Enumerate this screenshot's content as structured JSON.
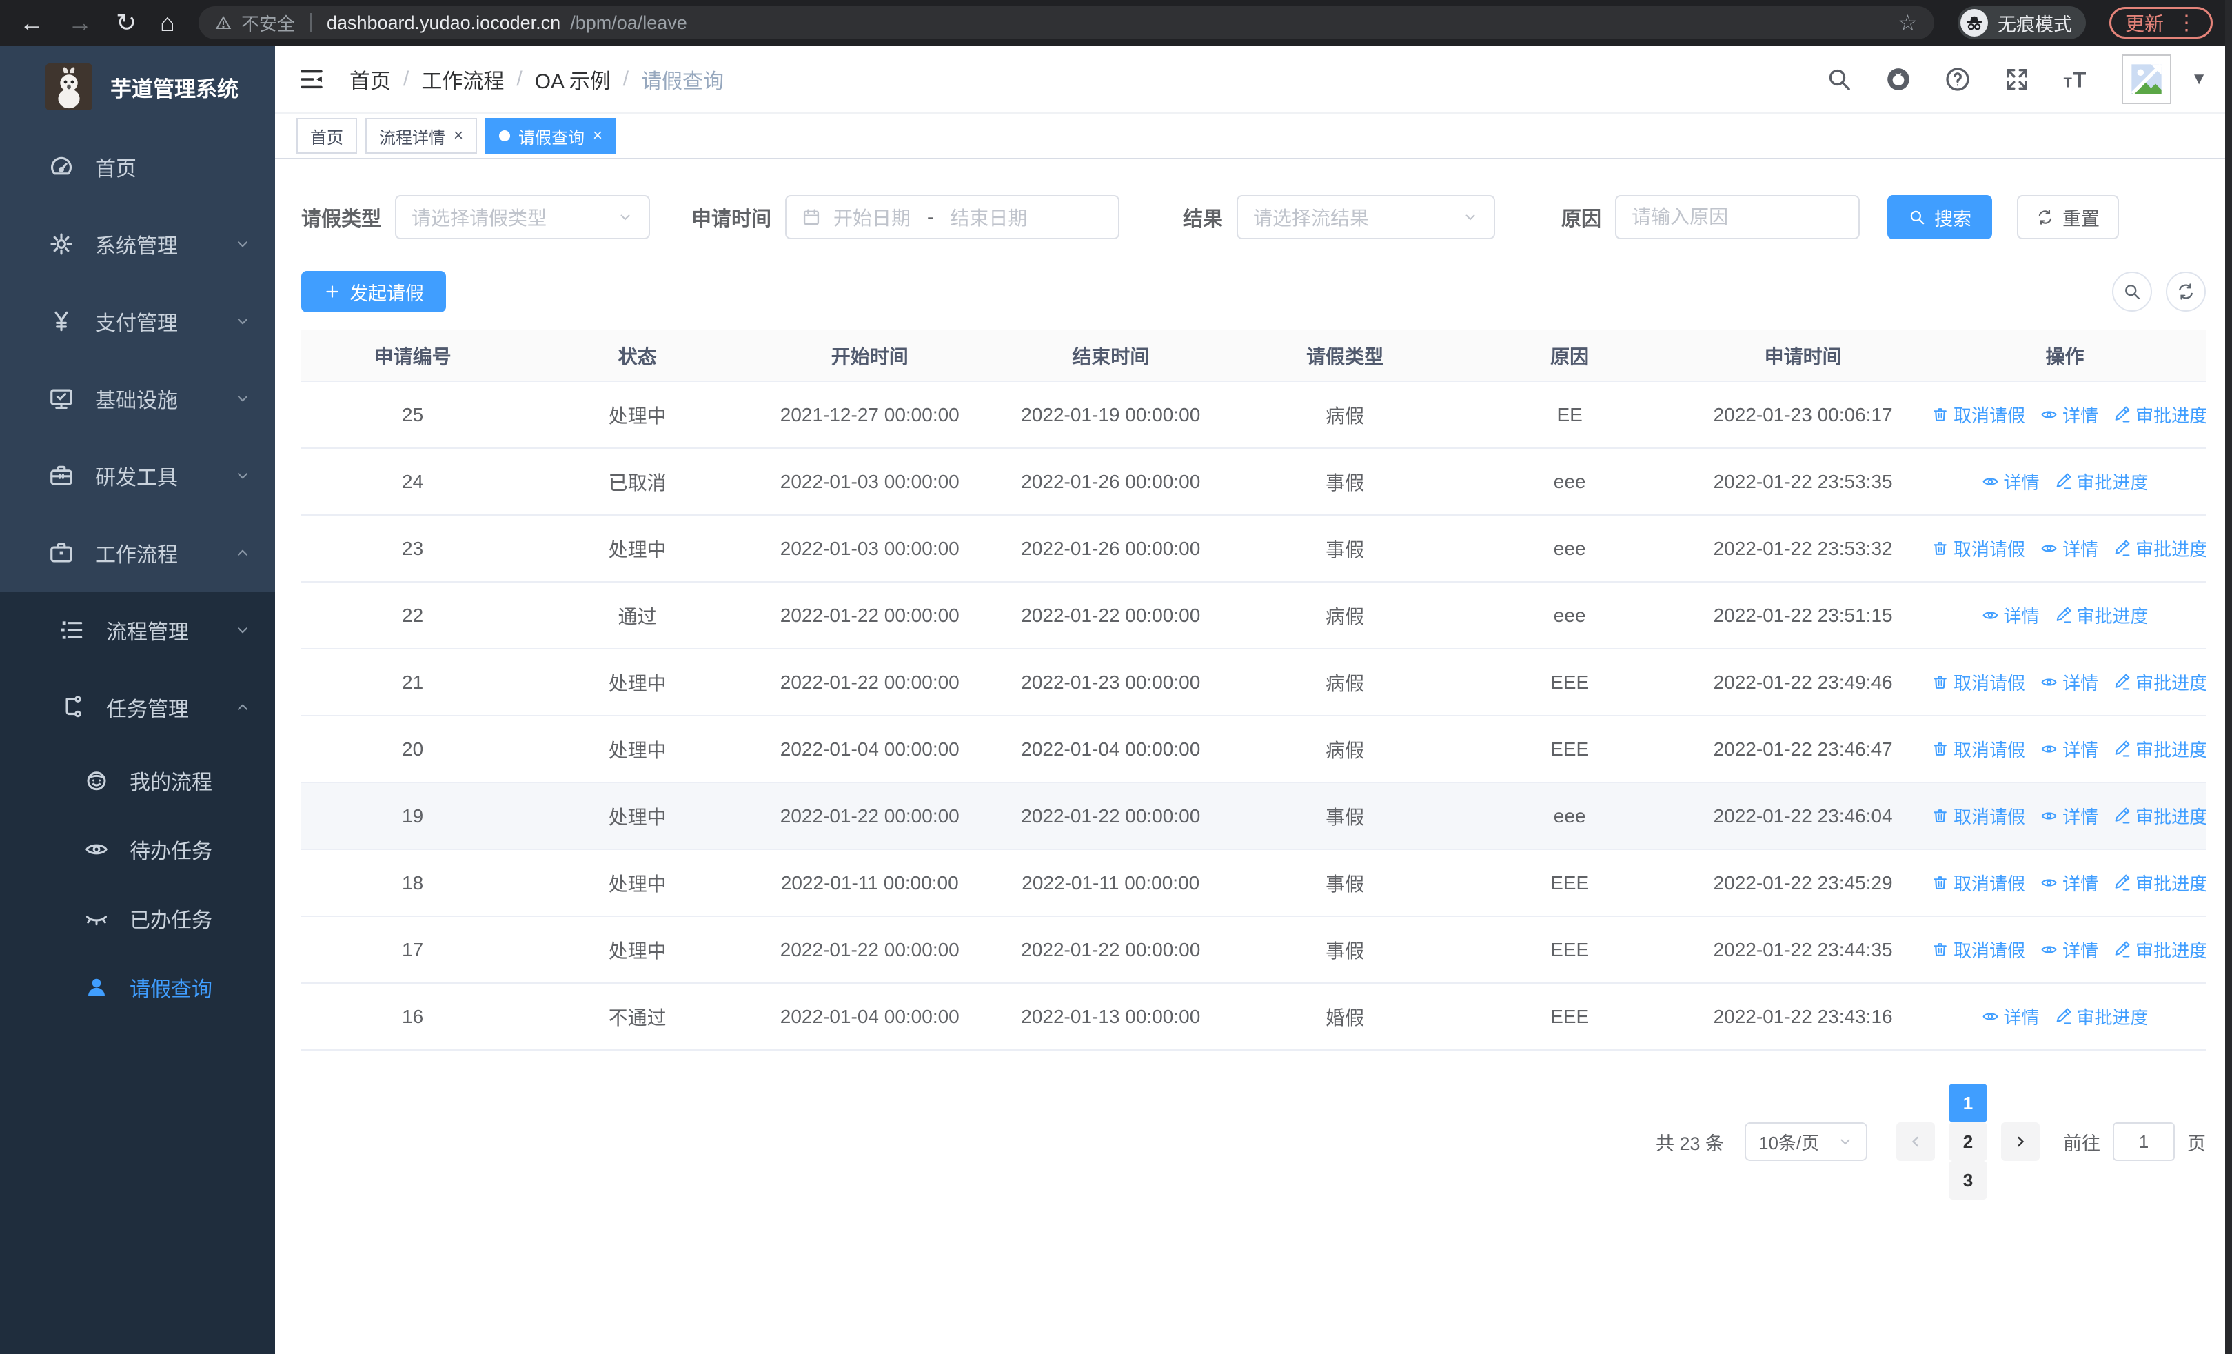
{
  "colors": {
    "accent": "#409eff",
    "sidebar_bg": "#304156",
    "submenu_bg": "#1f2d3d"
  },
  "browser": {
    "security_label": "不安全",
    "url_host": "dashboard.yudao.iocoder.cn",
    "url_path": "/bpm/oa/leave",
    "incognito_label": "无痕模式",
    "update_label": "更新"
  },
  "sidebar": {
    "app_title": "芋道管理系统",
    "items": [
      {
        "name": "home",
        "label": "首页",
        "icon": "dashboard-icon",
        "level": 1,
        "arrow": null,
        "active": false
      },
      {
        "name": "system",
        "label": "系统管理",
        "icon": "gear-icon",
        "level": 1,
        "arrow": "down",
        "active": false
      },
      {
        "name": "payment",
        "label": "支付管理",
        "icon": "yen-icon",
        "level": 1,
        "arrow": "down",
        "active": false
      },
      {
        "name": "infra",
        "label": "基础设施",
        "icon": "monitor-icon",
        "level": 1,
        "arrow": "down",
        "active": false
      },
      {
        "name": "devtools",
        "label": "研发工具",
        "icon": "toolbox-icon",
        "level": 1,
        "arrow": "down",
        "active": false
      },
      {
        "name": "workflow",
        "label": "工作流程",
        "icon": "briefcase-icon",
        "level": 1,
        "arrow": "up",
        "active": false
      },
      {
        "name": "process-mgmt",
        "label": "流程管理",
        "icon": "list-tree-icon",
        "level": 2,
        "arrow": "down",
        "active": false
      },
      {
        "name": "task-mgmt",
        "label": "任务管理",
        "icon": "flow-tree-icon",
        "level": 2,
        "arrow": "up",
        "active": false
      },
      {
        "name": "my-process",
        "label": "我的流程",
        "icon": "robot-icon",
        "level": 3,
        "arrow": null,
        "active": false
      },
      {
        "name": "todo-task",
        "label": "待办任务",
        "icon": "eye-icon",
        "level": 3,
        "arrow": null,
        "active": false
      },
      {
        "name": "done-task",
        "label": "已办任务",
        "icon": "eye-closed-icon",
        "level": 3,
        "arrow": null,
        "active": false
      },
      {
        "name": "leave-query",
        "label": "请假查询",
        "icon": "user-icon",
        "level": 3,
        "arrow": null,
        "active": true
      }
    ]
  },
  "header": {
    "breadcrumb": [
      "首页",
      "工作流程",
      "OA 示例",
      "请假查询"
    ],
    "icons": [
      "search-icon",
      "github-icon",
      "question-icon",
      "fullscreen-icon",
      "fontsize-icon"
    ]
  },
  "tabs": [
    {
      "name": "home",
      "label": "首页",
      "active": false,
      "closable": false
    },
    {
      "name": "process-detail",
      "label": "流程详情",
      "active": false,
      "closable": true
    },
    {
      "name": "leave-query",
      "label": "请假查询",
      "active": true,
      "closable": true
    }
  ],
  "filters": {
    "leave_type_label": "请假类型",
    "leave_type_placeholder": "请选择请假类型",
    "apply_time_label": "申请时间",
    "date_start_placeholder": "开始日期",
    "date_separator": "-",
    "date_end_placeholder": "结束日期",
    "result_label": "结果",
    "result_placeholder": "请选择流结果",
    "reason_label": "原因",
    "reason_placeholder": "请输入原因",
    "search_label": "搜索",
    "reset_label": "重置"
  },
  "toolbar": {
    "create_label": "发起请假"
  },
  "table": {
    "columns": [
      "申请编号",
      "状态",
      "开始时间",
      "结束时间",
      "请假类型",
      "原因",
      "申请时间",
      "操作"
    ],
    "action_defs": {
      "cancel": {
        "label": "取消请假",
        "icon": "trash-icon"
      },
      "detail": {
        "label": "详情",
        "icon": "eye-icon"
      },
      "progress": {
        "label": "审批进度",
        "icon": "pen-icon"
      }
    },
    "rows": [
      {
        "id": "25",
        "status": "处理中",
        "start": "2021-12-27 00:00:00",
        "end": "2022-01-19 00:00:00",
        "type": "病假",
        "reason": "EE",
        "apply": "2022-01-23 00:06:17",
        "actions": [
          "cancel",
          "detail",
          "progress"
        ],
        "highlighted": false
      },
      {
        "id": "24",
        "status": "已取消",
        "start": "2022-01-03 00:00:00",
        "end": "2022-01-26 00:00:00",
        "type": "事假",
        "reason": "eee",
        "apply": "2022-01-22 23:53:35",
        "actions": [
          "detail",
          "progress"
        ],
        "highlighted": false
      },
      {
        "id": "23",
        "status": "处理中",
        "start": "2022-01-03 00:00:00",
        "end": "2022-01-26 00:00:00",
        "type": "事假",
        "reason": "eee",
        "apply": "2022-01-22 23:53:32",
        "actions": [
          "cancel",
          "detail",
          "progress"
        ],
        "highlighted": false
      },
      {
        "id": "22",
        "status": "通过",
        "start": "2022-01-22 00:00:00",
        "end": "2022-01-22 00:00:00",
        "type": "病假",
        "reason": "eee",
        "apply": "2022-01-22 23:51:15",
        "actions": [
          "detail",
          "progress"
        ],
        "highlighted": false
      },
      {
        "id": "21",
        "status": "处理中",
        "start": "2022-01-22 00:00:00",
        "end": "2022-01-23 00:00:00",
        "type": "病假",
        "reason": "EEE",
        "apply": "2022-01-22 23:49:46",
        "actions": [
          "cancel",
          "detail",
          "progress"
        ],
        "highlighted": false
      },
      {
        "id": "20",
        "status": "处理中",
        "start": "2022-01-04 00:00:00",
        "end": "2022-01-04 00:00:00",
        "type": "病假",
        "reason": "EEE",
        "apply": "2022-01-22 23:46:47",
        "actions": [
          "cancel",
          "detail",
          "progress"
        ],
        "highlighted": false
      },
      {
        "id": "19",
        "status": "处理中",
        "start": "2022-01-22 00:00:00",
        "end": "2022-01-22 00:00:00",
        "type": "事假",
        "reason": "eee",
        "apply": "2022-01-22 23:46:04",
        "actions": [
          "cancel",
          "detail",
          "progress"
        ],
        "highlighted": true
      },
      {
        "id": "18",
        "status": "处理中",
        "start": "2022-01-11 00:00:00",
        "end": "2022-01-11 00:00:00",
        "type": "事假",
        "reason": "EEE",
        "apply": "2022-01-22 23:45:29",
        "actions": [
          "cancel",
          "detail",
          "progress"
        ],
        "highlighted": false
      },
      {
        "id": "17",
        "status": "处理中",
        "start": "2022-01-22 00:00:00",
        "end": "2022-01-22 00:00:00",
        "type": "事假",
        "reason": "EEE",
        "apply": "2022-01-22 23:44:35",
        "actions": [
          "cancel",
          "detail",
          "progress"
        ],
        "highlighted": false
      },
      {
        "id": "16",
        "status": "不通过",
        "start": "2022-01-04 00:00:00",
        "end": "2022-01-13 00:00:00",
        "type": "婚假",
        "reason": "EEE",
        "apply": "2022-01-22 23:43:16",
        "actions": [
          "detail",
          "progress"
        ],
        "highlighted": false
      }
    ]
  },
  "pagination": {
    "total_label": "共 23 条",
    "page_size_label": "10条/页",
    "pages": [
      "1",
      "2",
      "3"
    ],
    "current_page": "1",
    "goto_label": "前往",
    "goto_value": "1",
    "page_unit_label": "页"
  }
}
